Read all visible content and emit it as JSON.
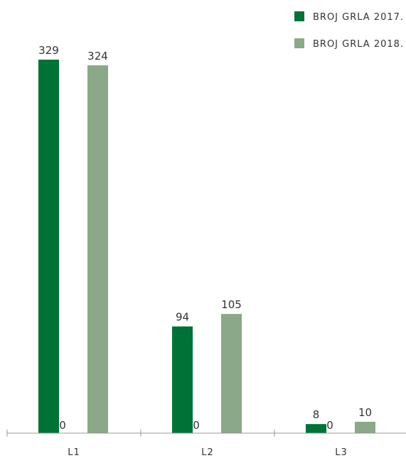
{
  "chart_data": {
    "type": "bar",
    "categories": [
      "L1",
      "L2",
      "L3"
    ],
    "series": [
      {
        "name": "BROJ GRLA 2017.",
        "color": "#007236",
        "values": [
          329,
          94,
          8
        ]
      },
      {
        "name": "",
        "color": "#8ba888",
        "values": [
          0,
          0,
          0
        ]
      },
      {
        "name": "BROJ GRLA 2018.",
        "color": "#8ba888",
        "values": [
          324,
          105,
          10
        ]
      }
    ],
    "ylim": [
      0,
      329
    ],
    "legend": "top-right",
    "grid": false
  }
}
